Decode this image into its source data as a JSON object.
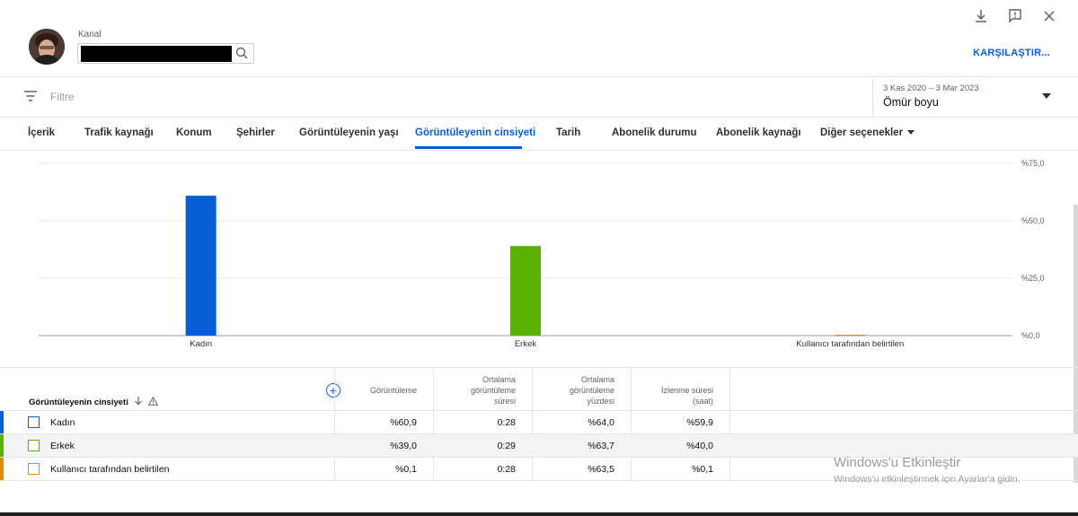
{
  "header": {
    "channel_label": "Kanal",
    "compare_label": "KARŞILAŞTIR..."
  },
  "filter": {
    "placeholder": "Filtre"
  },
  "date": {
    "range": "3 Kas 2020 – 3 Mar 2023",
    "preset": "Ömür boyu"
  },
  "tabs": [
    {
      "label": "İçerik"
    },
    {
      "label": "Trafik kaynağı"
    },
    {
      "label": "Konum"
    },
    {
      "label": "Şehirler"
    },
    {
      "label": "Görüntüleyenin yaşı"
    },
    {
      "label": "Görüntüleyenin cinsiyeti"
    },
    {
      "label": "Tarih"
    },
    {
      "label": "Abonelik durumu"
    },
    {
      "label": "Abonelik kaynağı"
    },
    {
      "label": "Diğer seçenekler"
    }
  ],
  "active_tab": "Görüntüleyenin cinsiyeti",
  "chart_data": {
    "type": "bar",
    "categories": [
      "Kadın",
      "Erkek",
      "Kullanıcı tarafından belirtilen"
    ],
    "values": [
      60.9,
      39.0,
      0.1
    ],
    "colors": [
      "#065fd4",
      "#5bb004",
      "#e08a00"
    ],
    "ylim": [
      0,
      75
    ],
    "yticks": [
      {
        "value": 0,
        "label": "%0,0"
      },
      {
        "value": 25,
        "label": "%25,0"
      },
      {
        "value": 50,
        "label": "%50,0"
      },
      {
        "value": 75,
        "label": "%75,0"
      }
    ],
    "y_axis_side": "right",
    "grid": true
  },
  "table": {
    "dimension_header": "Görüntüleyenin cinsiyeti",
    "columns": [
      {
        "line1": "",
        "line2": "",
        "line3": "Görüntüleme"
      },
      {
        "line1": "Ortalama",
        "line2": "görüntüleme",
        "line3": "süresi"
      },
      {
        "line1": "Ortalama",
        "line2": "görüntüleme",
        "line3": "yüzdesi"
      },
      {
        "line1": "",
        "line2": "İzlenme süresi",
        "line3": "(saat)"
      }
    ],
    "rows": [
      {
        "label": "Kadın",
        "color": "#065fd4",
        "views": "%60,9",
        "avg_duration": "0:28",
        "avg_percent": "%64,0",
        "watch_time": "%59,9"
      },
      {
        "label": "Erkek",
        "color": "#5bb004",
        "views": "%39,0",
        "avg_duration": "0:29",
        "avg_percent": "%63,7",
        "watch_time": "%40,0"
      },
      {
        "label": "Kullanıcı tarafından belirtilen",
        "color": "#e08a00",
        "views": "%0,1",
        "avg_duration": "0:28",
        "avg_percent": "%63,5",
        "watch_time": "%0,1"
      }
    ]
  },
  "watermark": {
    "title": "Windows'u Etkinleştir",
    "subtitle": "Windows'u etkinleştirmek için Ayarlar'a gidin."
  }
}
